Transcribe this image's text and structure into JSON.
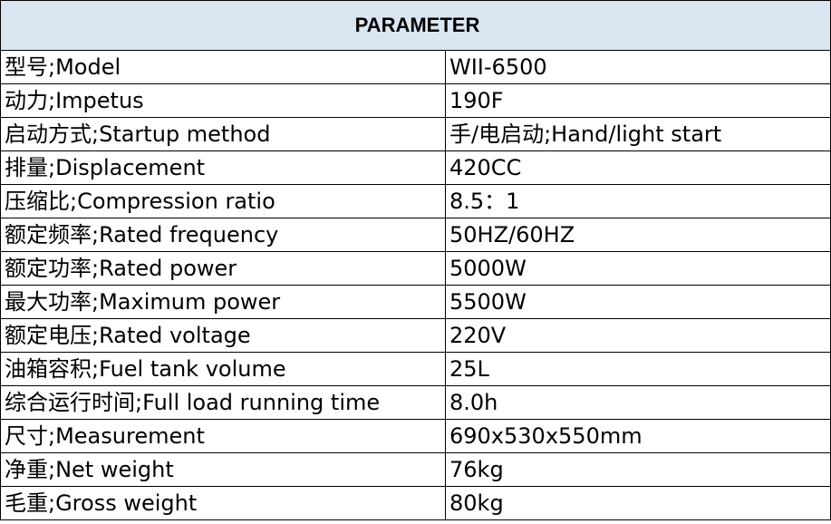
{
  "header": {
    "title": "PARAMETER"
  },
  "table": {
    "rows": [
      [
        "型号;Model",
        "WII-6500"
      ],
      [
        "动力;Impetus",
        "190F"
      ],
      [
        "启动方式;Startup method",
        "手/电启动;Hand/light start"
      ],
      [
        "排量;Displacement",
        "420CC"
      ],
      [
        "压缩比;Compression ratio",
        "8.5：1"
      ],
      [
        "额定频率;Rated frequency",
        "50HZ/60HZ"
      ],
      [
        "额定功率;Rated power",
        "5000W"
      ],
      [
        "最大功率;Maximum power",
        "5500W"
      ],
      [
        "额定电压;Rated voltage",
        "220V"
      ],
      [
        "油箱容积;Fuel tank volume",
        "25L"
      ],
      [
        "综合运行时间;Full load running time",
        "8.0h"
      ],
      [
        "尺寸;Measurement",
        "690x530x550mm"
      ],
      [
        "净重;Net weight",
        "76kg"
      ],
      [
        "毛重;Gross weight",
        "80kg"
      ]
    ]
  }
}
